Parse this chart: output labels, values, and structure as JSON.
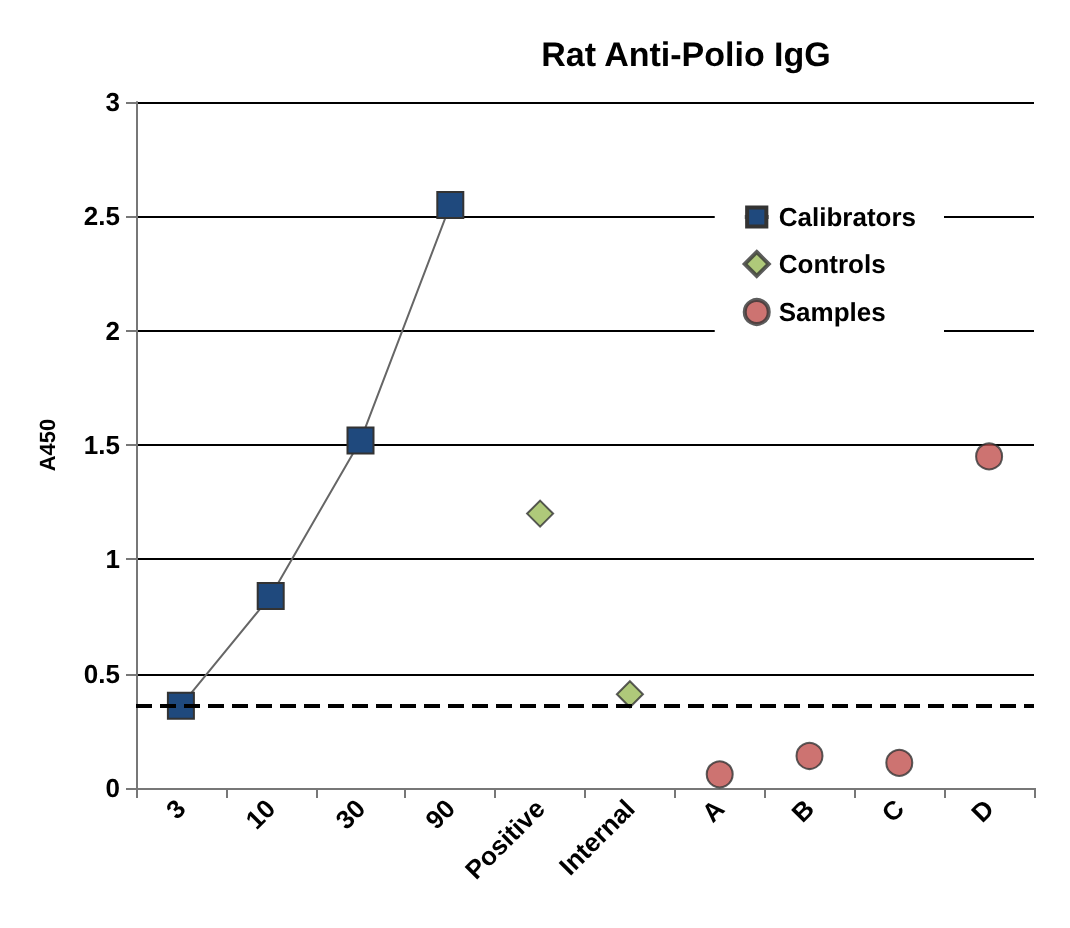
{
  "chart_data": {
    "type": "scatter",
    "title": "Rat Anti-Polio IgG",
    "ylabel": "A450",
    "categories": [
      "3",
      "10",
      "30",
      "90",
      "Positive",
      "Internal",
      "A",
      "B",
      "C",
      "D"
    ],
    "series": [
      {
        "name": "Calibrators",
        "type": "line",
        "color": "#1f497d",
        "marker": "square",
        "x": [
          "3",
          "10",
          "30",
          "90"
        ],
        "values": [
          0.36,
          0.84,
          1.52,
          2.55
        ]
      },
      {
        "name": "Controls",
        "color": "#9bbb59",
        "marker": "diamond",
        "x": [
          "Positive",
          "Internal"
        ],
        "values": [
          1.2,
          0.41
        ]
      },
      {
        "name": "Samples",
        "color": "#c0504d",
        "marker": "circle",
        "x": [
          "A",
          "B",
          "C",
          "D"
        ],
        "values": [
          0.06,
          0.14,
          0.11,
          1.45
        ]
      }
    ],
    "ylim": [
      0,
      3
    ],
    "yticks": [
      0,
      0.5,
      1,
      1.5,
      2,
      2.5,
      3
    ],
    "grid": "y",
    "legend": "top right",
    "ref_lines": [
      {
        "axis": "y",
        "value": 0.36,
        "line_style": "dashed",
        "color": "#000000"
      }
    ]
  }
}
